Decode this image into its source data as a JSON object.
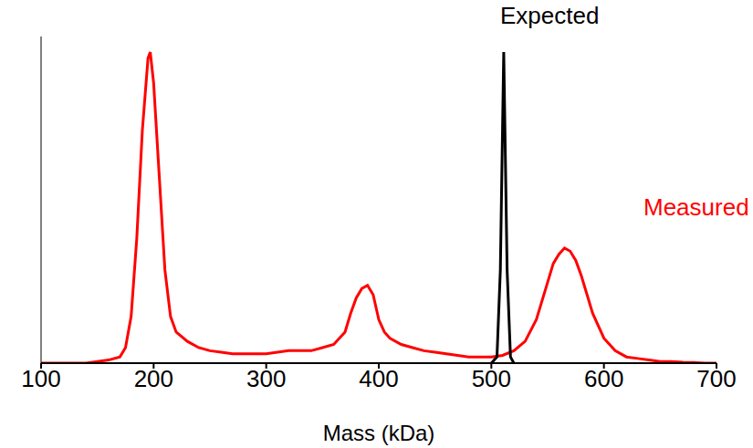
{
  "chart_data": {
    "type": "line",
    "x_label": "Mass (kDa)",
    "xlim": [
      100,
      700
    ],
    "xticks": [
      100,
      200,
      300,
      400,
      500,
      600,
      700
    ],
    "ylim": [
      0,
      1.05
    ],
    "yticks": [],
    "tick_labels": "x",
    "grid": false,
    "legend": "none",
    "series": [
      {
        "name": "Measured",
        "color": "#ff0000",
        "x": [
          100,
          110,
          120,
          130,
          140,
          150,
          160,
          170,
          175,
          180,
          185,
          190,
          195,
          197,
          200,
          205,
          210,
          215,
          220,
          230,
          240,
          250,
          260,
          270,
          280,
          290,
          300,
          310,
          320,
          330,
          340,
          350,
          360,
          370,
          375,
          380,
          385,
          390,
          395,
          400,
          405,
          410,
          420,
          430,
          440,
          450,
          460,
          470,
          480,
          490,
          500,
          510,
          520,
          530,
          540,
          550,
          555,
          560,
          565,
          570,
          575,
          580,
          590,
          600,
          610,
          620,
          630,
          640,
          650,
          660,
          670,
          680,
          690,
          700
        ],
        "values": [
          0,
          0,
          0,
          0,
          0,
          0.005,
          0.01,
          0.02,
          0.05,
          0.15,
          0.4,
          0.75,
          0.98,
          1.0,
          0.9,
          0.6,
          0.3,
          0.15,
          0.1,
          0.07,
          0.05,
          0.04,
          0.035,
          0.03,
          0.03,
          0.03,
          0.03,
          0.035,
          0.04,
          0.04,
          0.04,
          0.05,
          0.06,
          0.1,
          0.16,
          0.21,
          0.24,
          0.25,
          0.22,
          0.14,
          0.1,
          0.08,
          0.06,
          0.05,
          0.04,
          0.035,
          0.03,
          0.025,
          0.02,
          0.02,
          0.02,
          0.025,
          0.04,
          0.07,
          0.14,
          0.26,
          0.32,
          0.35,
          0.37,
          0.36,
          0.33,
          0.28,
          0.16,
          0.08,
          0.04,
          0.02,
          0.015,
          0.01,
          0.005,
          0.005,
          0.003,
          0.002,
          0,
          0
        ]
      },
      {
        "name": "Expected",
        "color": "#000000",
        "x": [
          500,
          505,
          508,
          511,
          514,
          517,
          520
        ],
        "values": [
          0,
          0.02,
          0.3,
          1.0,
          0.3,
          0.02,
          0
        ]
      }
    ]
  }
}
